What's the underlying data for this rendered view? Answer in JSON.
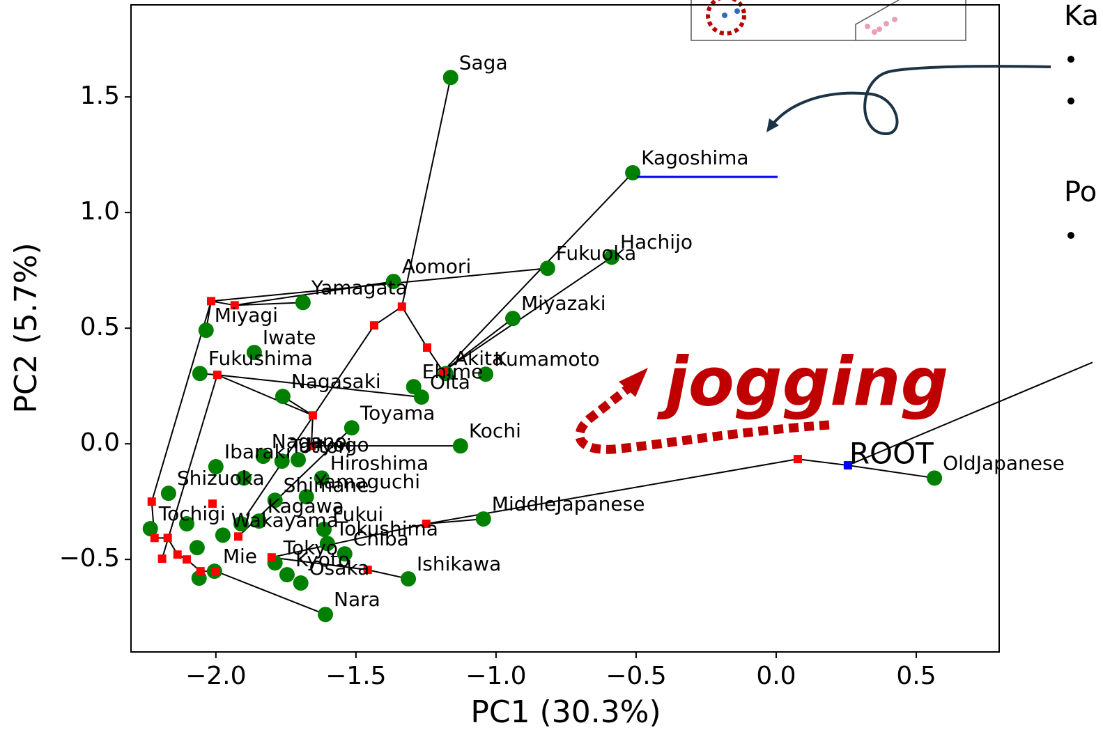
{
  "chart_data": {
    "type": "scatter",
    "xlabel": "PC1 (30.3%)",
    "ylabel": "PC2 (5.7%)",
    "xlim": [
      -2.303,
      0.796
    ],
    "ylim": [
      -0.9,
      1.898
    ],
    "xticks": [
      {
        "value": -2.0,
        "label": "−2.0"
      },
      {
        "value": -1.5,
        "label": "−1.5"
      },
      {
        "value": -1.0,
        "label": "−1.0"
      },
      {
        "value": -0.5,
        "label": "−0.5"
      },
      {
        "value": 0.0,
        "label": "0.0"
      },
      {
        "value": 0.5,
        "label": "0.5"
      }
    ],
    "yticks": [
      {
        "value": -0.5,
        "label": "−0.5"
      },
      {
        "value": 0.0,
        "label": "0.0"
      },
      {
        "value": 0.5,
        "label": "0.5"
      },
      {
        "value": 1.0,
        "label": "1.0"
      },
      {
        "value": 1.5,
        "label": "1.5"
      }
    ],
    "series": [
      {
        "type": "line",
        "color": "#000000",
        "x": [
          -1.162,
          -1.336,
          -1.246,
          -1.189,
          null,
          -0.512,
          -1.189,
          null,
          -0.587,
          -1.189,
          null,
          -0.94,
          -1.189,
          null,
          -0.816,
          -2.017,
          -1.933,
          -1.366,
          null,
          -2.017,
          -2.229,
          -2.219,
          -2.172,
          -2.137,
          -2.104,
          -2.055,
          -2.0,
          null,
          -1.336,
          -1.435,
          -1.891,
          null,
          -2.057,
          -1.995,
          -1.654,
          -1.659,
          -1.127,
          null,
          -1.654,
          -1.761,
          null,
          -1.995,
          -2.192,
          null,
          0.565,
          0.256,
          0.077,
          -1.249,
          -1.045,
          null,
          -1.249,
          -1.801,
          null,
          0.256,
          1.129,
          null,
          -1.609,
          -2.0,
          null,
          -1.313,
          -1.458,
          -1.801,
          null,
          -2.035,
          -2.017,
          null,
          -1.689,
          -1.933,
          null,
          -1.515,
          -1.92,
          null,
          -1.995,
          -1.266
        ],
        "values": [
          1.584,
          0.593,
          0.416,
          0.313,
          null,
          1.172,
          0.313,
          null,
          0.807,
          0.313,
          null,
          0.542,
          0.313,
          null,
          0.759,
          0.617,
          0.599,
          0.702,
          null,
          0.617,
          -0.25,
          -0.407,
          -0.407,
          -0.479,
          -0.5,
          -0.551,
          -0.551,
          null,
          0.593,
          0.512,
          -0.31,
          null,
          0.304,
          0.298,
          0.123,
          -0.009,
          -0.009,
          null,
          0.123,
          0.205,
          null,
          0.298,
          -0.497,
          null,
          -0.148,
          -0.093,
          -0.066,
          -0.346,
          -0.325,
          null,
          -0.346,
          -0.491,
          null,
          -0.093,
          0.352,
          null,
          -0.738,
          -0.551,
          null,
          -0.584,
          -0.545,
          -0.491,
          null,
          0.491,
          0.617,
          null,
          0.611,
          0.599,
          null,
          0.069,
          -0.401,
          null,
          0.298,
          0.202
        ]
      },
      {
        "type": "scatter",
        "marker": "circle",
        "color": "#008000",
        "labels": [
          "Saga",
          "Kagoshima",
          "Hachijo",
          "Fukuoka",
          "Aomori",
          "Yamagata",
          "Miyagi",
          "Miyazaki",
          "Iwate",
          "Fukushima",
          "Kumamoto",
          "Akita",
          "Ehime",
          "Oita",
          "Nagasaki",
          "Toyama",
          "Kochi",
          "Nagano",
          "Hyogo",
          "Ibaraki",
          "Tottori",
          "Hiroshima",
          "Shizuoka",
          "Yamaguchi",
          "Shimane",
          "Kagawa",
          "Tochigi",
          "Fukui",
          "Tokushima",
          "Chiba",
          "Wakayama",
          "Tokyo",
          "Mie",
          "Kyoto",
          "Osaka",
          "Ishikawa",
          "Nara",
          "MiddleJapanese",
          "OldJapanese",
          null,
          null,
          null,
          null,
          null
        ],
        "x": [
          -1.162,
          -0.512,
          -0.587,
          -0.816,
          -1.366,
          -1.689,
          -2.035,
          -0.94,
          -1.863,
          -2.057,
          -1.037,
          -1.179,
          -1.294,
          -1.266,
          -1.761,
          -1.515,
          -1.127,
          -1.831,
          -1.706,
          -2.0,
          -1.764,
          -1.622,
          -2.169,
          -1.677,
          -1.789,
          -1.846,
          -2.234,
          -1.614,
          -1.602,
          -1.54,
          -1.975,
          -1.789,
          -2.005,
          -1.746,
          -1.697,
          -1.313,
          -1.609,
          -1.045,
          0.565,
          -1.9,
          -2.104,
          -2.067,
          -2.06,
          -1.91
        ],
        "values": [
          1.584,
          1.172,
          0.807,
          0.759,
          0.702,
          0.611,
          0.491,
          0.542,
          0.395,
          0.304,
          0.301,
          0.304,
          0.247,
          0.202,
          0.205,
          0.069,
          -0.009,
          -0.054,
          -0.069,
          -0.099,
          -0.075,
          -0.148,
          -0.214,
          -0.229,
          -0.244,
          -0.334,
          -0.367,
          -0.37,
          -0.431,
          -0.476,
          -0.395,
          -0.515,
          -0.551,
          -0.566,
          -0.602,
          -0.584,
          -0.738,
          -0.325,
          -0.148,
          -0.148,
          -0.346,
          -0.449,
          -0.581,
          -0.346
        ]
      },
      {
        "type": "scatter",
        "marker": "square",
        "color": "#ff0000",
        "x": [
          -2.017,
          -1.933,
          -1.336,
          -1.435,
          -1.246,
          -1.189,
          -1.995,
          -1.654,
          -1.659,
          0.077,
          -1.249,
          -2.229,
          -2.219,
          -2.172,
          -2.192,
          -2.137,
          -2.104,
          -2.055,
          -2.0,
          -1.458,
          -1.92,
          -1.801,
          -2.012
        ],
        "values": [
          0.617,
          0.599,
          0.593,
          0.512,
          0.416,
          0.313,
          0.298,
          0.123,
          -0.009,
          -0.066,
          -0.346,
          -0.25,
          -0.407,
          -0.407,
          -0.497,
          -0.479,
          -0.5,
          -0.551,
          -0.551,
          -0.545,
          -0.401,
          -0.491,
          -0.259
        ]
      },
      {
        "type": "scatter",
        "marker": "square",
        "color": "#0000ff",
        "labels": [
          "ROOT"
        ],
        "x": [
          0.256
        ],
        "values": [
          -0.093
        ]
      }
    ],
    "annotation": "jogging",
    "side_text": [
      "Ka",
      "Po"
    ]
  }
}
